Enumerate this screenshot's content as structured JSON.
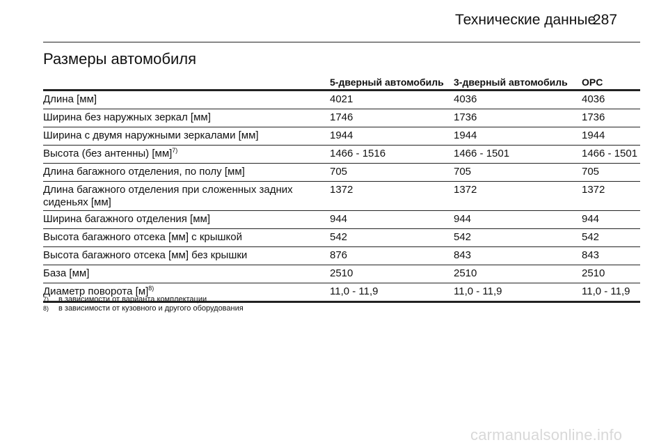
{
  "header": {
    "title": "Технические данные",
    "page_number": "287"
  },
  "section_title": "Размеры автомобиля",
  "table": {
    "columns": [
      "",
      "5-дверный автомобиль",
      "3-дверный автомобиль",
      "OPC"
    ],
    "rows": [
      {
        "label": "Длина [мм]",
        "note": "",
        "values": [
          "4021",
          "4036",
          "4036"
        ]
      },
      {
        "label": "Ширина без наружных зеркал [мм]",
        "note": "",
        "values": [
          "1746",
          "1736",
          "1736"
        ]
      },
      {
        "label": "Ширина с двумя наружными зеркалами [мм]",
        "note": "",
        "values": [
          "1944",
          "1944",
          "1944"
        ]
      },
      {
        "label": "Высота (без антенны) [мм]",
        "note": "7)",
        "values": [
          "1466 - 1516",
          "1466 - 1501",
          "1466 - 1501"
        ]
      },
      {
        "label": "Длина багажного отделения, по полу [мм]",
        "note": "",
        "values": [
          "705",
          "705",
          "705"
        ]
      },
      {
        "label": "Длина багажного отделения при сложенных задних сиденьях [мм]",
        "note": "",
        "values": [
          "1372",
          "1372",
          "1372"
        ]
      },
      {
        "label": "Ширина багажного отделения [мм]",
        "note": "",
        "values": [
          "944",
          "944",
          "944"
        ]
      },
      {
        "label": "Высота багажного отсека [мм] с крышкой",
        "note": "",
        "values": [
          "542",
          "542",
          "542"
        ]
      },
      {
        "label": "Высота багажного отсека [мм] без крышки",
        "note": "",
        "values": [
          "876",
          "843",
          "843"
        ]
      },
      {
        "label": "База [мм]",
        "note": "",
        "values": [
          "2510",
          "2510",
          "2510"
        ]
      },
      {
        "label": "Диаметр поворота [м]",
        "note": "8)",
        "values": [
          "11,0 - 11,9",
          "11,0 - 11,9",
          "11,0 - 11,9"
        ]
      }
    ]
  },
  "footnotes": [
    {
      "mark": "7)",
      "text": "в зависимости от варианта комплектации"
    },
    {
      "mark": "8)",
      "text": "в зависимости от кузовного и другого оборудования"
    }
  ],
  "watermark": "carmanualsonline.info"
}
